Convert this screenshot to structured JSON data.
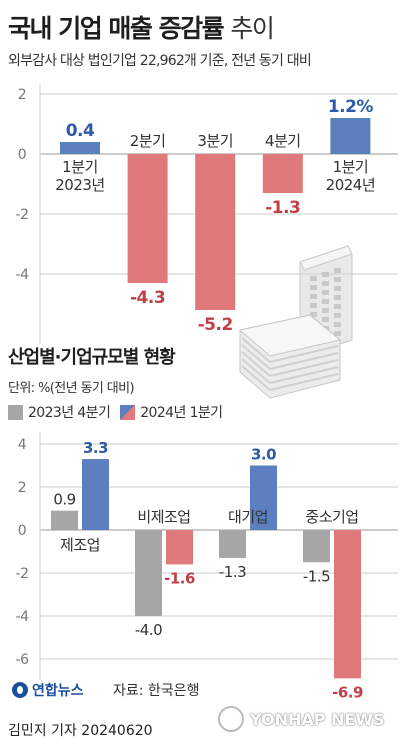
{
  "title_bold": "국내 기업 매출 증감률",
  "title_light": "추이",
  "subtitle": "외부감사 대상 법인기업 22,962개 기준, 전년 동기 대비",
  "section2_title": "산업별·기업규모별 현황",
  "unit": "단위: %(전년 동기 대비)",
  "legend": [
    {
      "label": "2023년 4분기",
      "color": "#a6a6a6"
    },
    {
      "label": "2024년 1분기",
      "color": "#5b7fbf",
      "color2": "#e07a7a"
    }
  ],
  "source": "자료: 한국은행",
  "logo": "연합뉴스",
  "reporter": "김민지 기자  20240620",
  "watermark": "YONHAP NEWS",
  "colors": {
    "positive": "#5b7fbf",
    "negative": "#e07a7a",
    "prev": "#a6a6a6",
    "negText": "#c0404a",
    "posText": "#2e5aa8"
  },
  "chart_data": [
    {
      "type": "bar",
      "categories": [
        [
          "1분기",
          "2023년"
        ],
        [
          "2분기"
        ],
        [
          "3분기"
        ],
        [
          "4분기"
        ],
        [
          "1분기",
          "2024년"
        ]
      ],
      "values": [
        0.4,
        -4.3,
        -5.2,
        -1.3,
        1.2
      ],
      "value_labels": [
        "0.4",
        "-4.3",
        "-5.2",
        "-1.3",
        "1.2%"
      ],
      "yticks": [
        2,
        0,
        -2,
        -4
      ],
      "ylim": [
        -5.8,
        2.0
      ]
    },
    {
      "type": "bar",
      "categories": [
        "제조업",
        "비제조업",
        "대기업",
        "중소기업"
      ],
      "series": [
        {
          "name": "2023년 4분기",
          "values": [
            0.9,
            -4.0,
            -1.3,
            -1.5
          ],
          "labels": [
            "0.9",
            "-4.0",
            "-1.3",
            "-1.5"
          ]
        },
        {
          "name": "2024년 1분기",
          "values": [
            3.3,
            -1.6,
            3.0,
            -6.9
          ],
          "labels": [
            "3.3",
            "-1.6",
            "3.0",
            "-6.9"
          ]
        }
      ],
      "yticks": [
        4,
        2,
        0,
        -2,
        -4,
        -6
      ],
      "ylim": [
        -7.0,
        4.8
      ]
    }
  ]
}
